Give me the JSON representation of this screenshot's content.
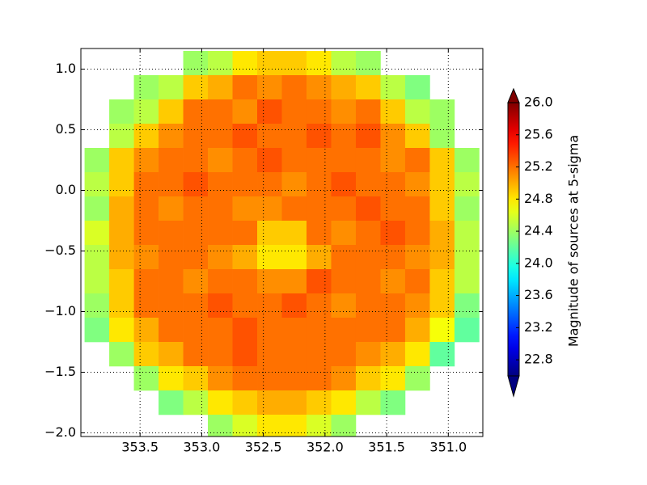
{
  "chart_data": {
    "type": "heatmap",
    "colorbar_label": "Magnitude of sources at 5-sigma",
    "colormap": "jet",
    "clim": [
      22.6,
      26.0
    ],
    "cticks": [
      {
        "value": 22.8,
        "label": "22.8"
      },
      {
        "value": 23.2,
        "label": "23.2"
      },
      {
        "value": 23.6,
        "label": "23.6"
      },
      {
        "value": 24.0,
        "label": "24.0"
      },
      {
        "value": 24.4,
        "label": "24.4"
      },
      {
        "value": 24.8,
        "label": "24.8"
      },
      {
        "value": 25.2,
        "label": "25.2"
      },
      {
        "value": 25.6,
        "label": "25.6"
      },
      {
        "value": 26.0,
        "label": "26.0"
      }
    ],
    "xlim": [
      353.98,
      350.72
    ],
    "ylim": [
      -2.03,
      1.17
    ],
    "xticks": [
      353.5,
      {
        "value": 353.0,
        "label": "353.0"
      },
      352.5,
      {
        "value": 352.0,
        "label": "352.0"
      },
      351.5,
      {
        "value": 351.0,
        "label": "351.0"
      }
    ],
    "yticks": [
      {
        "value": 1.0,
        "label": "1.0"
      },
      0.5,
      {
        "value": 0.0,
        "label": "0.0"
      },
      {
        "value": -0.5,
        "label": "−0.5"
      },
      {
        "value": -1.0,
        "label": "−1.0"
      },
      {
        "value": -1.5,
        "label": "−1.5"
      },
      {
        "value": -2.0,
        "label": "−2.0"
      }
    ],
    "grid": true,
    "x_edges": [
      353.95,
      353.75,
      353.55,
      353.35,
      353.15,
      352.95,
      352.75,
      352.55,
      352.35,
      352.15,
      351.95,
      351.75,
      351.55,
      351.35,
      351.15,
      350.95,
      350.75
    ],
    "y_edges": [
      1.15,
      0.95,
      0.75,
      0.55,
      0.35,
      0.15,
      -0.05,
      -0.25,
      -0.45,
      -0.65,
      -0.85,
      -1.05,
      -1.25,
      -1.45,
      -1.65,
      -1.85,
      -2.05
    ],
    "values": [
      [
        null,
        null,
        null,
        null,
        24.4,
        24.5,
        24.8,
        24.9,
        24.9,
        24.8,
        24.5,
        24.4,
        null,
        null,
        null,
        null
      ],
      [
        null,
        null,
        24.4,
        24.5,
        24.9,
        25.0,
        25.2,
        25.1,
        25.2,
        25.1,
        25.0,
        24.9,
        24.5,
        24.3,
        null,
        null
      ],
      [
        null,
        24.4,
        24.5,
        24.9,
        25.2,
        25.2,
        25.1,
        25.3,
        25.2,
        25.2,
        25.1,
        25.2,
        24.9,
        24.5,
        24.4,
        null
      ],
      [
        null,
        24.5,
        24.9,
        25.1,
        25.2,
        25.2,
        25.3,
        25.2,
        25.2,
        25.3,
        25.2,
        25.3,
        25.1,
        24.9,
        24.4,
        null
      ],
      [
        24.4,
        24.9,
        25.1,
        25.2,
        25.2,
        25.1,
        25.2,
        25.3,
        25.2,
        25.2,
        25.2,
        25.2,
        25.1,
        25.2,
        24.9,
        24.4
      ],
      [
        24.5,
        24.9,
        25.2,
        25.2,
        25.3,
        25.2,
        25.2,
        25.2,
        25.1,
        25.2,
        25.3,
        25.2,
        25.2,
        25.1,
        24.9,
        24.5
      ],
      [
        24.4,
        25.0,
        25.2,
        25.1,
        25.2,
        25.2,
        25.1,
        25.1,
        25.2,
        25.2,
        25.2,
        25.3,
        25.2,
        25.2,
        24.9,
        24.4
      ],
      [
        24.6,
        25.0,
        25.2,
        25.2,
        25.2,
        25.2,
        25.2,
        24.9,
        24.9,
        25.2,
        25.1,
        25.2,
        25.3,
        25.2,
        25.0,
        24.5
      ],
      [
        24.5,
        25.0,
        25.1,
        25.2,
        25.2,
        25.1,
        25.0,
        24.8,
        24.8,
        25.0,
        25.2,
        25.2,
        25.2,
        25.1,
        25.0,
        24.5
      ],
      [
        24.5,
        24.9,
        25.2,
        25.2,
        25.1,
        25.2,
        25.2,
        25.1,
        25.1,
        25.3,
        25.2,
        25.2,
        25.1,
        25.2,
        24.9,
        24.5
      ],
      [
        24.4,
        24.9,
        25.2,
        25.2,
        25.2,
        25.3,
        25.2,
        25.2,
        25.3,
        25.2,
        25.1,
        25.2,
        25.2,
        25.1,
        24.9,
        24.3
      ],
      [
        24.3,
        24.8,
        25.0,
        25.2,
        25.2,
        25.2,
        25.3,
        25.2,
        25.2,
        25.2,
        25.2,
        25.2,
        25.2,
        25.0,
        24.7,
        24.2
      ],
      [
        null,
        24.4,
        24.9,
        25.0,
        25.2,
        25.2,
        25.3,
        25.2,
        25.2,
        25.2,
        25.2,
        25.1,
        25.0,
        24.8,
        24.2,
        null
      ],
      [
        null,
        null,
        24.4,
        24.8,
        24.9,
        25.1,
        25.2,
        25.2,
        25.2,
        25.2,
        25.1,
        24.9,
        24.8,
        24.4,
        null,
        null
      ],
      [
        null,
        null,
        null,
        24.3,
        24.5,
        24.8,
        24.9,
        25.0,
        25.0,
        24.9,
        24.8,
        24.5,
        24.3,
        null,
        null,
        null
      ],
      [
        null,
        null,
        null,
        null,
        null,
        24.4,
        24.6,
        24.8,
        24.8,
        24.6,
        24.4,
        null,
        null,
        null,
        null,
        null
      ]
    ]
  }
}
